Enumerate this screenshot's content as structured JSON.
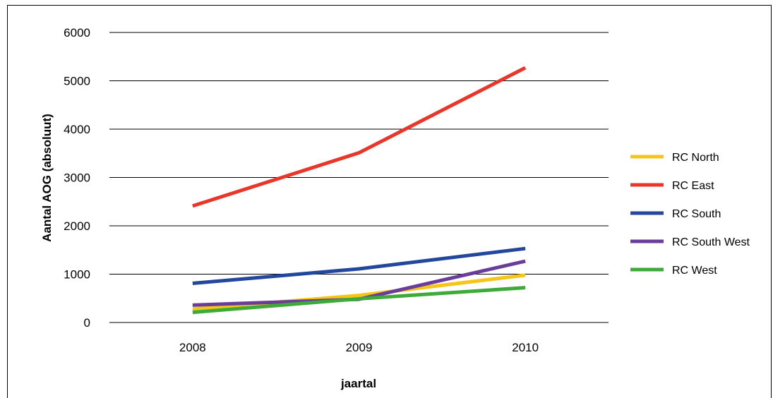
{
  "chart_data": {
    "type": "line",
    "title": "",
    "xlabel": "jaartal",
    "ylabel": "Aantal AOG (absoluut)",
    "categories": [
      "2008",
      "2009",
      "2010"
    ],
    "ylim": [
      0,
      6000
    ],
    "yticks": [
      "0",
      "1000",
      "2000",
      "3000",
      "4000",
      "5000",
      "6000"
    ],
    "grid": true,
    "legend_position": "right",
    "series": [
      {
        "name": "RC North",
        "color": "#F5C518",
        "values": [
          280,
          560,
          980
        ]
      },
      {
        "name": "RC East",
        "color": "#E8362A",
        "values": [
          2410,
          3510,
          5270
        ]
      },
      {
        "name": "RC South",
        "color": "#23479C",
        "values": [
          810,
          1110,
          1530
        ]
      },
      {
        "name": "RC South West",
        "color": "#6B3D9A",
        "values": [
          360,
          480,
          1270
        ]
      },
      {
        "name": "RC West",
        "color": "#3DAA3A",
        "values": [
          210,
          490,
          720
        ]
      }
    ]
  }
}
